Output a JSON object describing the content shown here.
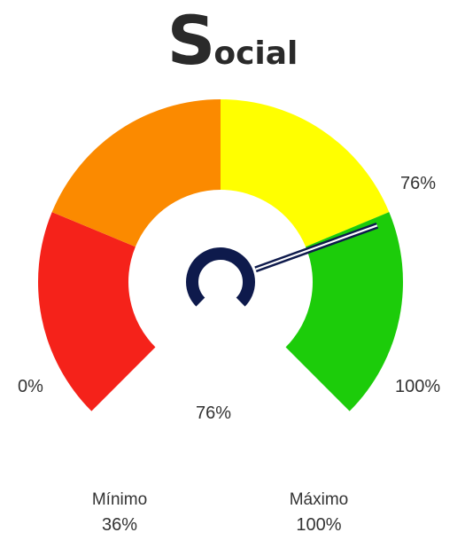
{
  "title": {
    "first_letter": "S",
    "rest": "ocial"
  },
  "chart_data": {
    "type": "gauge",
    "value": 76,
    "value_label": "76%",
    "pointer_label": "76%",
    "min_label": "0%",
    "max_label": "100%",
    "range": [
      0,
      100
    ],
    "bands": [
      {
        "from": 0,
        "to": 25,
        "color": "#f5221a"
      },
      {
        "from": 25,
        "to": 50,
        "color": "#fb8a00"
      },
      {
        "from": 50,
        "to": 75,
        "color": "#ffff00"
      },
      {
        "from": 75,
        "to": 100,
        "color": "#1ccc0a"
      }
    ],
    "needle_color": "#0e1a4c"
  },
  "stats": {
    "minimum": {
      "label": "Mínimo",
      "value": "36%"
    },
    "maximum": {
      "label": "Máximo",
      "value": "100%"
    }
  }
}
